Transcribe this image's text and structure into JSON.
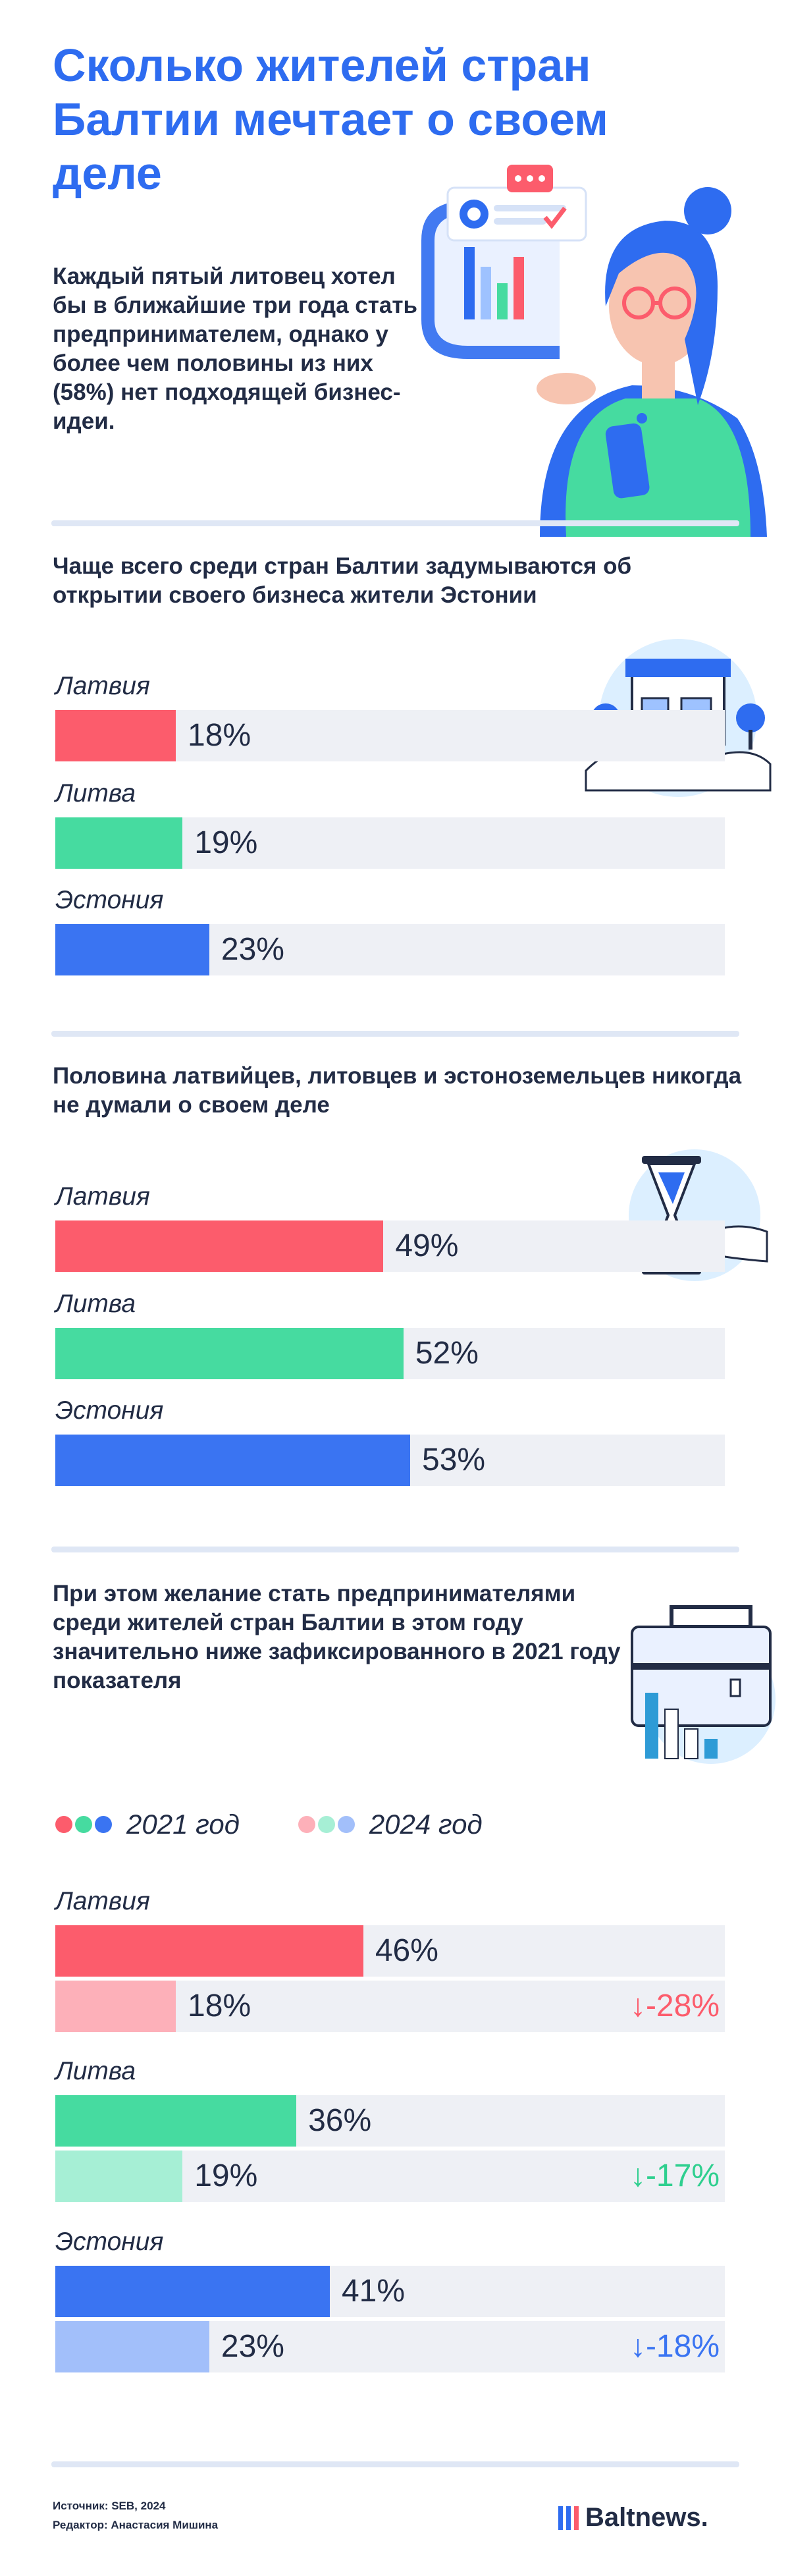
{
  "title": "Сколько жителей стран Балтии мечтает о своем деле",
  "lead": "Каждый пятый литовец хотел бы в ближайшие три года стать предпринимателем, однако у более чем половины из них (58%) нет подходящей бизнес-идеи.",
  "colors": {
    "latvia": "#fc5c6c",
    "lithuania": "#46dba0",
    "estonia": "#3a74f2",
    "latvia_light": "#fdb0b9",
    "lithuania_light": "#a6efd5",
    "estonia_light": "#a2bffa",
    "track": "#eef0f5",
    "accent": "#2e6cf0"
  },
  "chart_data": [
    {
      "type": "bar",
      "title": "Чаще всего среди стран Балтии задумываются об открытии своего бизнеса жители Эстонии",
      "categories": [
        "Латвия",
        "Литва",
        "Эстония"
      ],
      "values": [
        18,
        19,
        23
      ],
      "labels": [
        "18%",
        "19%",
        "23%"
      ],
      "xlim": [
        0,
        100
      ]
    },
    {
      "type": "bar",
      "title": "Половина латвийцев, литовцев и эстоноземельцев никогда не думали о своем деле",
      "categories": [
        "Латвия",
        "Литва",
        "Эстония"
      ],
      "values": [
        49,
        52,
        53
      ],
      "labels": [
        "49%",
        "52%",
        "53%"
      ],
      "xlim": [
        0,
        100
      ]
    },
    {
      "type": "bar",
      "title": "При этом желание стать предпринимателями среди жителей стран Балтии в этом году значительно ниже зафиксированного в 2021 году показателя",
      "categories": [
        "Латвия",
        "Литва",
        "Эстония"
      ],
      "series": [
        {
          "name": "2021 год",
          "values": [
            46,
            36,
            41
          ],
          "labels": [
            "46%",
            "36%",
            "41%"
          ]
        },
        {
          "name": "2024 год",
          "values": [
            18,
            19,
            23
          ],
          "labels": [
            "18%",
            "19%",
            "23%"
          ]
        }
      ],
      "changes": [
        "↓-28%",
        "↓-17%",
        "↓-18%"
      ],
      "xlim": [
        0,
        100
      ]
    }
  ],
  "footer": {
    "source": "Источник: SEB, 2024",
    "editor": "Редактор: Анастасия Мишина",
    "brand": "Baltnews."
  }
}
